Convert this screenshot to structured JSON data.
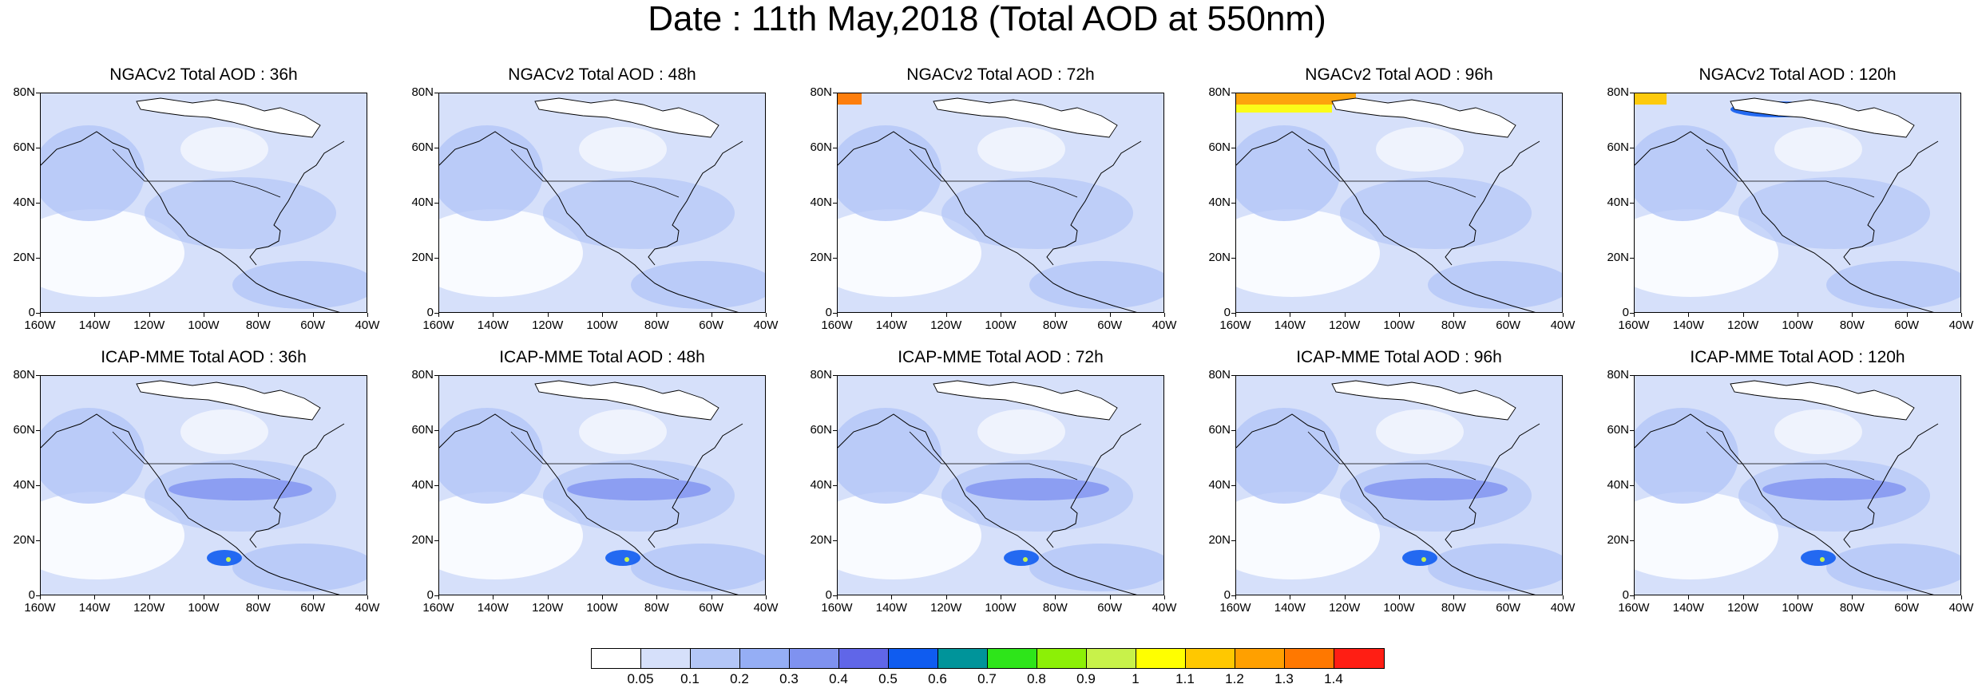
{
  "title": "Date : 11th May,2018 (Total AOD at 550nm)",
  "panels": [
    {
      "title": "NGACv2 Total AOD : 36h"
    },
    {
      "title": "NGACv2 Total AOD : 48h"
    },
    {
      "title": "NGACv2 Total AOD : 72h"
    },
    {
      "title": "NGACv2 Total AOD : 96h"
    },
    {
      "title": "NGACv2 Total AOD : 120h"
    },
    {
      "title": "ICAP-MME Total AOD : 36h"
    },
    {
      "title": "ICAP-MME Total AOD : 48h"
    },
    {
      "title": "ICAP-MME Total AOD : 72h"
    },
    {
      "title": "ICAP-MME Total AOD : 96h"
    },
    {
      "title": "ICAP-MME Total AOD : 120h"
    }
  ],
  "lat_labels": [
    "80N",
    "60N",
    "40N",
    "20N",
    "0"
  ],
  "lon_labels": [
    "160W",
    "140W",
    "120W",
    "100W",
    "80W",
    "60W",
    "40W"
  ],
  "colorbar": {
    "colors": [
      "#ffffff",
      "#d6e0fa",
      "#b3c6f7",
      "#95aef5",
      "#7f92f0",
      "#6066e8",
      "#0f5cf0",
      "#00949a",
      "#2ee51a",
      "#8cf006",
      "#c8f24a",
      "#ffff00",
      "#ffc800",
      "#ffa000",
      "#ff7800",
      "#ff1e14"
    ],
    "labels": [
      "0.05",
      "0.1",
      "0.2",
      "0.3",
      "0.4",
      "0.5",
      "0.6",
      "0.7",
      "0.8",
      "0.9",
      "1",
      "1.1",
      "1.2",
      "1.3",
      "1.4"
    ]
  }
}
